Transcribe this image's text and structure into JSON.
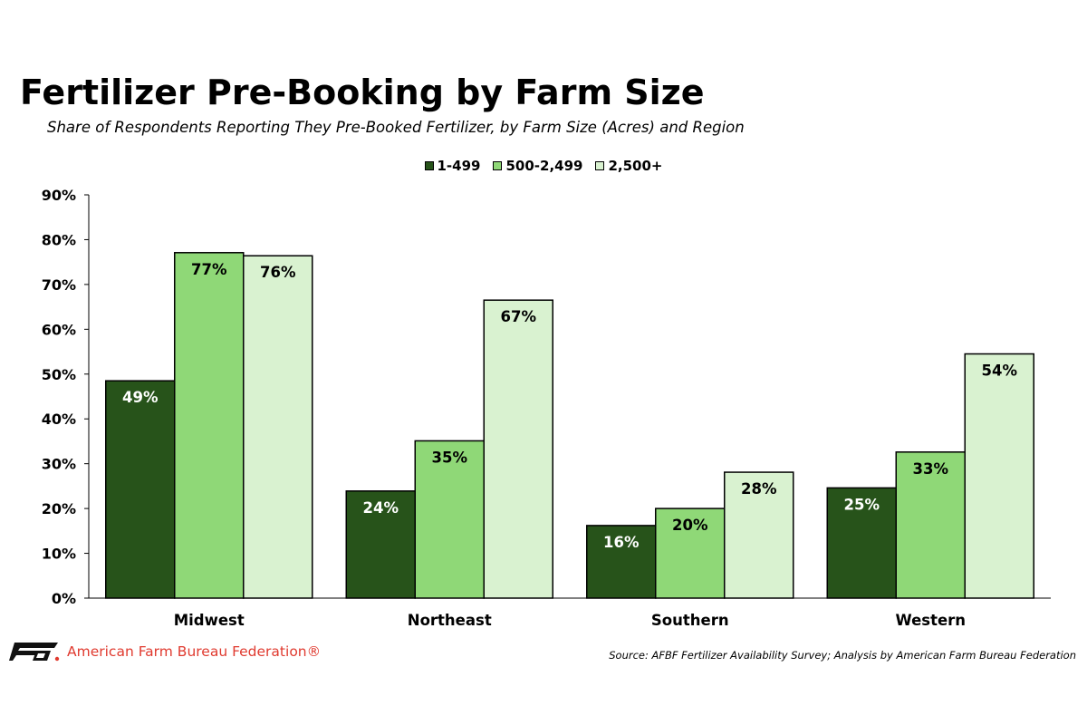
{
  "header": {
    "title": "Fertilizer Pre-Booking by Farm Size",
    "subtitle": "Share of Respondents Reporting They Pre-Booked Fertilizer, by Farm Size (Acres) and Region"
  },
  "footer": {
    "org_name": "American Farm Bureau Federation®",
    "logo_icon": "afbf-logo-icon",
    "source": "Source: AFBF Fertilizer Availability Survey; Analysis by American Farm Bureau Federation"
  },
  "chart_data": {
    "type": "bar",
    "title": "Fertilizer Pre-Booking by Farm Size",
    "subtitle": "Share of Respondents Reporting They Pre-Booked Fertilizer, by Farm Size (Acres) and Region",
    "xlabel": "",
    "ylabel": "",
    "ylim": [
      0,
      90
    ],
    "yticks": [
      "0%",
      "10%",
      "20%",
      "30%",
      "40%",
      "50%",
      "60%",
      "70%",
      "80%",
      "90%"
    ],
    "grid": false,
    "legend_position": "top-center",
    "categories": [
      "Midwest",
      "Northeast",
      "Southern",
      "Western"
    ],
    "series": [
      {
        "name": "1-499",
        "color": "#27531a",
        "label_color": "#ffffff",
        "values": [
          48.5,
          23.9,
          16.2,
          24.6
        ],
        "labels": [
          "49%",
          "24%",
          "16%",
          "25%"
        ]
      },
      {
        "name": "500-2,499",
        "color": "#8fd877",
        "label_color": "#000000",
        "values": [
          77.1,
          35.1,
          20.0,
          32.6
        ],
        "labels": [
          "77%",
          "35%",
          "20%",
          "33%"
        ]
      },
      {
        "name": "2,500+",
        "color": "#d9f2d0",
        "label_color": "#000000",
        "values": [
          76.4,
          66.5,
          28.1,
          54.5
        ],
        "labels": [
          "76%",
          "67%",
          "28%",
          "54%"
        ]
      }
    ]
  }
}
